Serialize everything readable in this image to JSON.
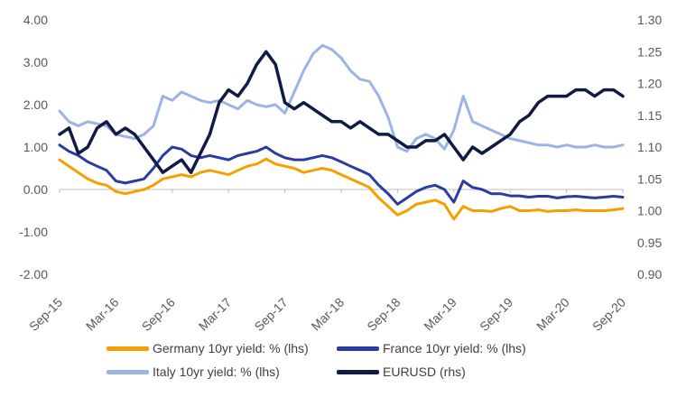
{
  "chart_data": {
    "type": "line",
    "title": "",
    "xlabel": "",
    "ylabel_left": "",
    "ylabel_right": "",
    "x_tick_labels": [
      "Sep-15",
      "Mar-16",
      "Sep-16",
      "Mar-17",
      "Sep-17",
      "Mar-18",
      "Sep-18",
      "Mar-19",
      "Sep-19",
      "Mar-20",
      "Sep-20"
    ],
    "x_range": [
      "Sep-15",
      "Sep-20"
    ],
    "y_left": {
      "range": [
        -2.0,
        4.0
      ],
      "ticks": [
        "-2.00",
        "-1.00",
        "0.00",
        "1.00",
        "2.00",
        "3.00",
        "4.00"
      ]
    },
    "y_right": {
      "range": [
        0.9,
        1.3
      ],
      "ticks": [
        "0.90",
        "0.95",
        "1.00",
        "1.05",
        "1.10",
        "1.15",
        "1.20",
        "1.25",
        "1.30"
      ]
    },
    "grid": "none",
    "legend_position": "bottom",
    "series": [
      {
        "name": "Germany 10yr yield: % (lhs)",
        "axis": "left",
        "color": "#f5a000",
        "points": [
          [
            0,
            0.7
          ],
          [
            1,
            0.55
          ],
          [
            2,
            0.4
          ],
          [
            3,
            0.25
          ],
          [
            4,
            0.15
          ],
          [
            5,
            0.1
          ],
          [
            6,
            -0.05
          ],
          [
            7,
            -0.1
          ],
          [
            8,
            -0.05
          ],
          [
            9,
            0.0
          ],
          [
            10,
            0.1
          ],
          [
            11,
            0.25
          ],
          [
            12,
            0.3
          ],
          [
            13,
            0.35
          ],
          [
            14,
            0.3
          ],
          [
            15,
            0.4
          ],
          [
            16,
            0.45
          ],
          [
            17,
            0.4
          ],
          [
            18,
            0.35
          ],
          [
            19,
            0.45
          ],
          [
            20,
            0.55
          ],
          [
            21,
            0.6
          ],
          [
            22,
            0.72
          ],
          [
            23,
            0.6
          ],
          [
            24,
            0.55
          ],
          [
            25,
            0.5
          ],
          [
            26,
            0.4
          ],
          [
            27,
            0.45
          ],
          [
            28,
            0.5
          ],
          [
            29,
            0.45
          ],
          [
            30,
            0.35
          ],
          [
            31,
            0.25
          ],
          [
            32,
            0.15
          ],
          [
            33,
            0.05
          ],
          [
            34,
            -0.2
          ],
          [
            35,
            -0.4
          ],
          [
            36,
            -0.6
          ],
          [
            37,
            -0.5
          ],
          [
            38,
            -0.35
          ],
          [
            39,
            -0.3
          ],
          [
            40,
            -0.25
          ],
          [
            41,
            -0.35
          ],
          [
            42,
            -0.7
          ],
          [
            43,
            -0.4
          ],
          [
            44,
            -0.5
          ],
          [
            45,
            -0.5
          ],
          [
            46,
            -0.52
          ],
          [
            47,
            -0.45
          ],
          [
            48,
            -0.4
          ],
          [
            49,
            -0.5
          ],
          [
            50,
            -0.5
          ],
          [
            51,
            -0.48
          ],
          [
            52,
            -0.52
          ],
          [
            53,
            -0.5
          ],
          [
            54,
            -0.5
          ],
          [
            55,
            -0.48
          ],
          [
            56,
            -0.5
          ],
          [
            57,
            -0.5
          ],
          [
            58,
            -0.5
          ],
          [
            59,
            -0.48
          ],
          [
            60,
            -0.45
          ]
        ]
      },
      {
        "name": "France 10yr yield: % (lhs)",
        "axis": "left",
        "color": "#2a3d9f",
        "points": [
          [
            0,
            1.05
          ],
          [
            1,
            0.9
          ],
          [
            2,
            0.8
          ],
          [
            3,
            0.65
          ],
          [
            4,
            0.55
          ],
          [
            5,
            0.45
          ],
          [
            6,
            0.2
          ],
          [
            7,
            0.15
          ],
          [
            8,
            0.2
          ],
          [
            9,
            0.25
          ],
          [
            10,
            0.5
          ],
          [
            11,
            0.8
          ],
          [
            12,
            1.0
          ],
          [
            13,
            0.95
          ],
          [
            14,
            0.8
          ],
          [
            15,
            0.75
          ],
          [
            16,
            0.8
          ],
          [
            17,
            0.75
          ],
          [
            18,
            0.7
          ],
          [
            19,
            0.8
          ],
          [
            20,
            0.85
          ],
          [
            21,
            0.9
          ],
          [
            22,
            1.0
          ],
          [
            23,
            0.85
          ],
          [
            24,
            0.75
          ],
          [
            25,
            0.7
          ],
          [
            26,
            0.7
          ],
          [
            27,
            0.75
          ],
          [
            28,
            0.8
          ],
          [
            29,
            0.75
          ],
          [
            30,
            0.65
          ],
          [
            31,
            0.55
          ],
          [
            32,
            0.45
          ],
          [
            33,
            0.35
          ],
          [
            34,
            0.1
          ],
          [
            35,
            -0.1
          ],
          [
            36,
            -0.35
          ],
          [
            37,
            -0.2
          ],
          [
            38,
            -0.05
          ],
          [
            39,
            0.05
          ],
          [
            40,
            0.1
          ],
          [
            41,
            0.0
          ],
          [
            42,
            -0.3
          ],
          [
            43,
            0.2
          ],
          [
            44,
            0.05
          ],
          [
            45,
            0.0
          ],
          [
            46,
            -0.1
          ],
          [
            47,
            -0.1
          ],
          [
            48,
            -0.15
          ],
          [
            49,
            -0.15
          ],
          [
            50,
            -0.18
          ],
          [
            51,
            -0.16
          ],
          [
            52,
            -0.16
          ],
          [
            53,
            -0.2
          ],
          [
            54,
            -0.17
          ],
          [
            55,
            -0.16
          ],
          [
            56,
            -0.18
          ],
          [
            57,
            -0.2
          ],
          [
            58,
            -0.18
          ],
          [
            59,
            -0.16
          ],
          [
            60,
            -0.18
          ]
        ]
      },
      {
        "name": "Italy 10yr yield: % (lhs)",
        "axis": "left",
        "color": "#9db3e6",
        "points": [
          [
            0,
            1.85
          ],
          [
            1,
            1.6
          ],
          [
            2,
            1.5
          ],
          [
            3,
            1.6
          ],
          [
            4,
            1.55
          ],
          [
            5,
            1.5
          ],
          [
            6,
            1.3
          ],
          [
            7,
            1.25
          ],
          [
            8,
            1.2
          ],
          [
            9,
            1.3
          ],
          [
            10,
            1.5
          ],
          [
            11,
            2.2
          ],
          [
            12,
            2.1
          ],
          [
            13,
            2.3
          ],
          [
            14,
            2.2
          ],
          [
            15,
            2.1
          ],
          [
            16,
            2.05
          ],
          [
            17,
            2.1
          ],
          [
            18,
            2.0
          ],
          [
            19,
            1.9
          ],
          [
            20,
            2.1
          ],
          [
            21,
            2.0
          ],
          [
            22,
            1.95
          ],
          [
            23,
            2.0
          ],
          [
            24,
            1.8
          ],
          [
            25,
            2.3
          ],
          [
            26,
            2.8
          ],
          [
            27,
            3.2
          ],
          [
            28,
            3.4
          ],
          [
            29,
            3.3
          ],
          [
            30,
            3.1
          ],
          [
            31,
            2.8
          ],
          [
            32,
            2.6
          ],
          [
            33,
            2.55
          ],
          [
            34,
            2.2
          ],
          [
            35,
            1.7
          ],
          [
            36,
            1.0
          ],
          [
            37,
            0.9
          ],
          [
            38,
            1.2
          ],
          [
            39,
            1.3
          ],
          [
            40,
            1.2
          ],
          [
            41,
            0.95
          ],
          [
            42,
            1.4
          ],
          [
            43,
            2.2
          ],
          [
            44,
            1.6
          ],
          [
            45,
            1.5
          ],
          [
            46,
            1.4
          ],
          [
            47,
            1.3
          ],
          [
            48,
            1.2
          ],
          [
            49,
            1.15
          ],
          [
            50,
            1.1
          ],
          [
            51,
            1.05
          ],
          [
            52,
            1.05
          ],
          [
            53,
            1.0
          ],
          [
            54,
            1.05
          ],
          [
            55,
            1.0
          ],
          [
            56,
            1.0
          ],
          [
            57,
            1.05
          ],
          [
            58,
            1.0
          ],
          [
            59,
            1.0
          ],
          [
            60,
            1.05
          ]
        ]
      },
      {
        "name": "EURUSD (rhs)",
        "axis": "right",
        "color": "#0f1a45",
        "points": [
          [
            0,
            1.12
          ],
          [
            1,
            1.13
          ],
          [
            2,
            1.09
          ],
          [
            3,
            1.1
          ],
          [
            4,
            1.13
          ],
          [
            5,
            1.14
          ],
          [
            6,
            1.12
          ],
          [
            7,
            1.13
          ],
          [
            8,
            1.12
          ],
          [
            9,
            1.1
          ],
          [
            10,
            1.08
          ],
          [
            11,
            1.06
          ],
          [
            12,
            1.07
          ],
          [
            13,
            1.08
          ],
          [
            14,
            1.06
          ],
          [
            15,
            1.09
          ],
          [
            16,
            1.12
          ],
          [
            17,
            1.17
          ],
          [
            18,
            1.19
          ],
          [
            19,
            1.18
          ],
          [
            20,
            1.2
          ],
          [
            21,
            1.23
          ],
          [
            22,
            1.25
          ],
          [
            23,
            1.23
          ],
          [
            24,
            1.17
          ],
          [
            25,
            1.16
          ],
          [
            26,
            1.17
          ],
          [
            27,
            1.16
          ],
          [
            28,
            1.15
          ],
          [
            29,
            1.14
          ],
          [
            30,
            1.14
          ],
          [
            31,
            1.13
          ],
          [
            32,
            1.14
          ],
          [
            33,
            1.13
          ],
          [
            34,
            1.12
          ],
          [
            35,
            1.12
          ],
          [
            36,
            1.11
          ],
          [
            37,
            1.1
          ],
          [
            38,
            1.1
          ],
          [
            39,
            1.11
          ],
          [
            40,
            1.11
          ],
          [
            41,
            1.12
          ],
          [
            42,
            1.1
          ],
          [
            43,
            1.08
          ],
          [
            44,
            1.1
          ],
          [
            45,
            1.09
          ],
          [
            46,
            1.1
          ],
          [
            47,
            1.11
          ],
          [
            48,
            1.12
          ],
          [
            49,
            1.14
          ],
          [
            50,
            1.15
          ],
          [
            51,
            1.17
          ],
          [
            52,
            1.18
          ],
          [
            53,
            1.18
          ],
          [
            54,
            1.18
          ],
          [
            55,
            1.19
          ],
          [
            56,
            1.19
          ],
          [
            57,
            1.18
          ],
          [
            58,
            1.19
          ],
          [
            59,
            1.19
          ],
          [
            60,
            1.18
          ]
        ]
      }
    ]
  }
}
